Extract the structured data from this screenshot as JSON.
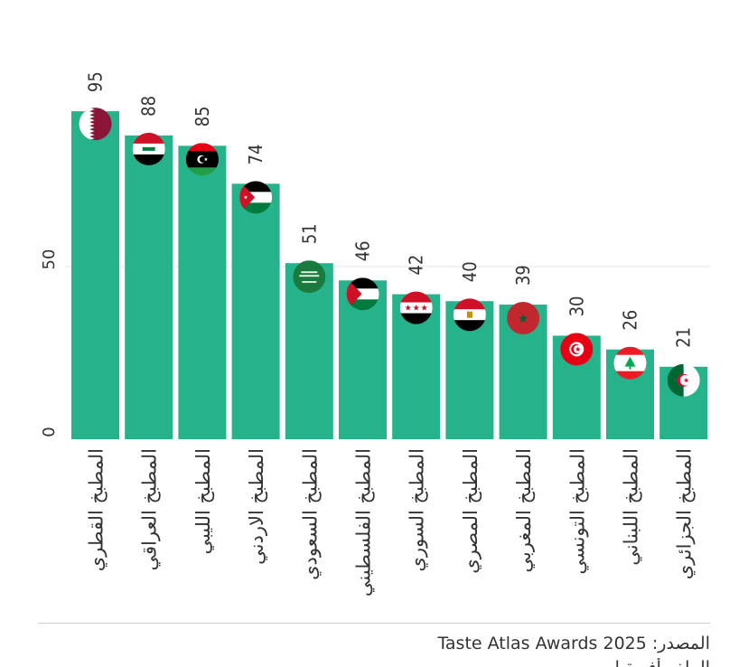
{
  "chart_data": {
    "type": "bar",
    "categories": [
      "المطبخ القطري",
      "المطبخ العراقي",
      "المطبخ الليبي",
      "المطبخ الاردني",
      "المطبخ السعودي",
      "المطبخ الفلسطيني",
      "المطبخ السوري",
      "المطبخ المصري",
      "المطبخ المغربي",
      "المطبخ التونسي",
      "المطبخ اللبناني",
      "المطبخ الجزائري"
    ],
    "values": [
      95,
      88,
      85,
      74,
      51,
      46,
      42,
      40,
      39,
      30,
      26,
      21
    ],
    "flags": [
      "qatar",
      "iraq",
      "libya",
      "jordan",
      "saudi-arabia",
      "palestine",
      "syria",
      "egypt",
      "morocco",
      "tunisia",
      "lebanon",
      "algeria"
    ],
    "yticks": [
      0,
      50
    ],
    "ylim": [
      0,
      100
    ],
    "grid": true,
    "bar_color": "#26b28b"
  },
  "footer": {
    "source_label": "المصدر:",
    "source_value": "Taste Atlas Awards 2025",
    "credit": "الملف أفريقيا"
  }
}
